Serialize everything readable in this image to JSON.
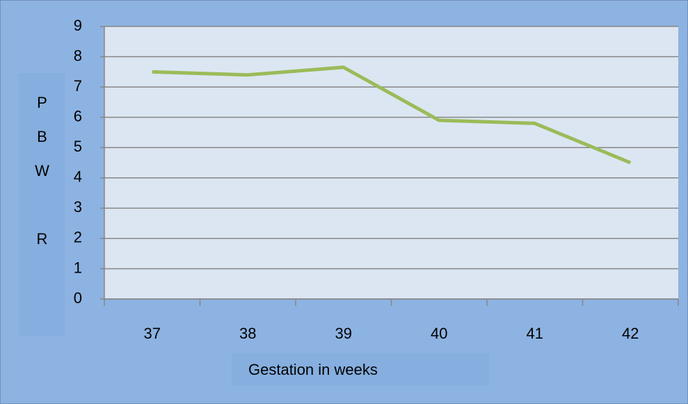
{
  "chart_data": {
    "type": "line",
    "categories": [
      "37",
      "38",
      "39",
      "40",
      "41",
      "42"
    ],
    "values": [
      7.5,
      7.4,
      7.65,
      5.9,
      5.8,
      4.5
    ],
    "color": "#9bbb59",
    "ylim": [
      0,
      9
    ],
    "yticks": [
      0,
      1,
      2,
      3,
      4,
      5,
      6,
      7,
      8,
      9
    ],
    "grid": true,
    "x_label": "Gestation in weeks",
    "y_label": "PBW R"
  }
}
